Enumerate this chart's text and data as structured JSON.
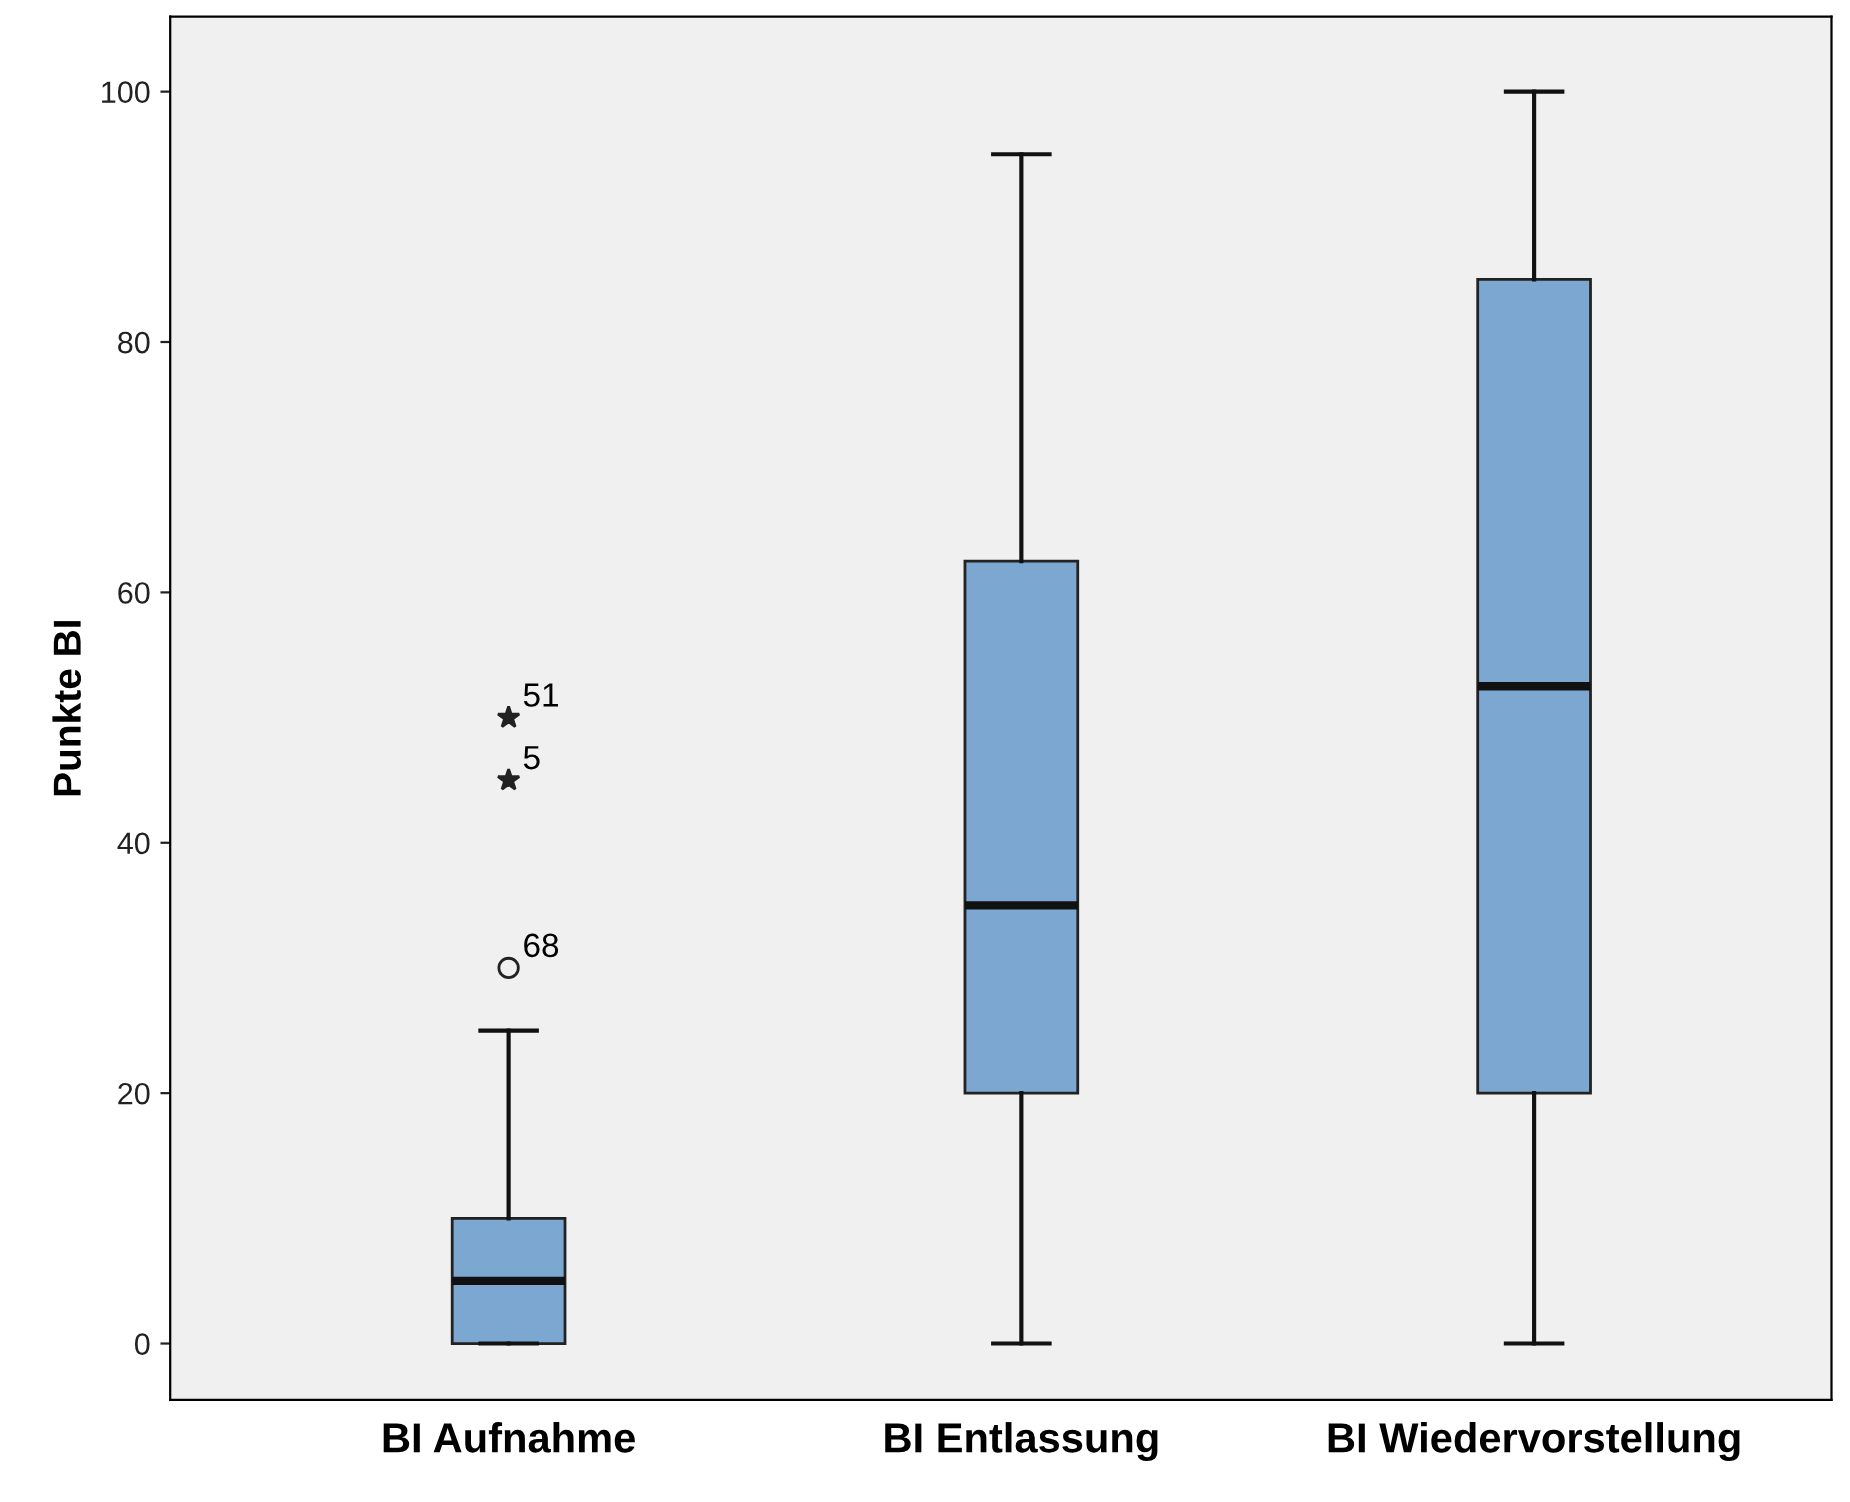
{
  "chart_data": {
    "type": "box",
    "ylabel": "Punkte BI",
    "categories": [
      "BI Aufnahme",
      "BI Entlassung",
      "BI Wiedervorstellung"
    ],
    "color": "#7ba7d0",
    "boxes": [
      {
        "low": 0,
        "q1": 0,
        "median": 5,
        "q3": 10,
        "high": 25,
        "outliers": [
          50,
          45,
          30
        ]
      },
      {
        "low": 0,
        "q1": 20,
        "median": 35,
        "q3": 62.5,
        "high": 95
      },
      {
        "low": 0,
        "q1": 20,
        "median": 52.5,
        "q3": 85,
        "high": 100
      }
    ],
    "ylim": [
      -4.5,
      106
    ],
    "yticks": [
      0,
      20,
      40,
      60,
      80,
      100
    ],
    "grid": false,
    "annotations": [
      "51",
      "5",
      "68"
    ]
  }
}
